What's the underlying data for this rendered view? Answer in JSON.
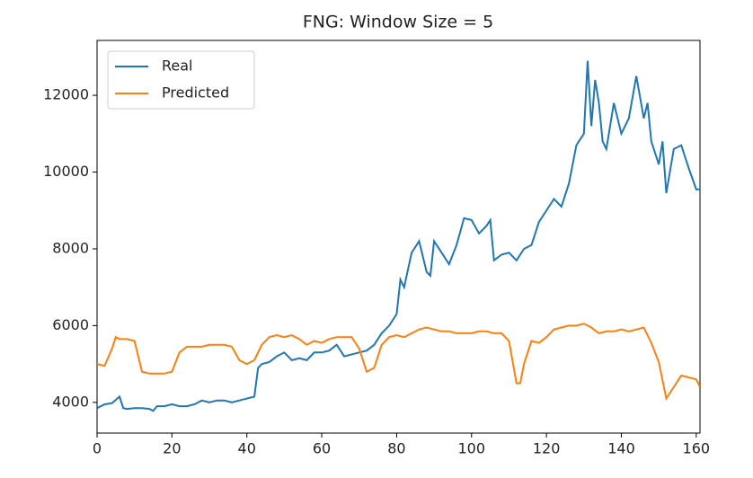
{
  "chart_data": {
    "type": "line",
    "title": "FNG: Window Size = 5",
    "xlim": [
      0,
      161
    ],
    "ylim": [
      3200,
      13430
    ],
    "xticks": [
      0,
      20,
      40,
      60,
      80,
      100,
      120,
      140,
      160
    ],
    "yticks": [
      4000,
      6000,
      8000,
      10000,
      12000
    ],
    "legend": "upper left",
    "series": [
      {
        "name": "Real",
        "color": "#1f77b4",
        "x": [
          0,
          2,
          4,
          6,
          7,
          8,
          10,
          12,
          14,
          15,
          16,
          18,
          20,
          22,
          24,
          26,
          28,
          30,
          32,
          34,
          36,
          38,
          40,
          42,
          43,
          44,
          46,
          48,
          50,
          52,
          54,
          56,
          58,
          60,
          62,
          64,
          66,
          68,
          70,
          72,
          74,
          76,
          78,
          80,
          81,
          82,
          84,
          86,
          88,
          89,
          90,
          92,
          94,
          96,
          98,
          100,
          102,
          104,
          105,
          106,
          108,
          110,
          112,
          114,
          116,
          118,
          120,
          122,
          124,
          126,
          128,
          130,
          131,
          132,
          133,
          134,
          135,
          136,
          138,
          140,
          142,
          144,
          146,
          147,
          148,
          150,
          151,
          152,
          154,
          156,
          158,
          160,
          161
        ],
        "values": [
          3850,
          3950,
          3980,
          4150,
          3850,
          3830,
          3850,
          3850,
          3830,
          3780,
          3900,
          3900,
          3950,
          3900,
          3900,
          3950,
          4050,
          4000,
          4050,
          4050,
          4000,
          4050,
          4100,
          4150,
          4900,
          5000,
          5050,
          5200,
          5300,
          5100,
          5150,
          5100,
          5300,
          5300,
          5350,
          5500,
          5200,
          5250,
          5300,
          5350,
          5500,
          5800,
          6000,
          6300,
          7200,
          7000,
          7900,
          8200,
          7400,
          7300,
          8200,
          7900,
          7600,
          8100,
          8800,
          8750,
          8400,
          8600,
          8750,
          7700,
          7850,
          7900,
          7700,
          8000,
          8100,
          8700,
          9000,
          9300,
          9100,
          9700,
          10700,
          11000,
          12900,
          11200,
          12400,
          11800,
          10800,
          10600,
          11800,
          11000,
          11400,
          12500,
          11400,
          11800,
          10800,
          10200,
          10800,
          9450,
          10600,
          10700,
          10100,
          9550,
          9550
        ]
      },
      {
        "name": "Predicted",
        "color": "#ff7f0e",
        "x": [
          0,
          2,
          4,
          5,
          6,
          8,
          10,
          12,
          14,
          16,
          18,
          20,
          22,
          24,
          26,
          28,
          30,
          32,
          34,
          36,
          38,
          40,
          42,
          44,
          46,
          48,
          50,
          52,
          54,
          56,
          58,
          60,
          62,
          64,
          66,
          68,
          70,
          72,
          74,
          76,
          78,
          80,
          82,
          84,
          86,
          88,
          90,
          92,
          94,
          96,
          98,
          100,
          102,
          104,
          106,
          108,
          110,
          112,
          113,
          114,
          116,
          118,
          120,
          122,
          124,
          126,
          128,
          130,
          132,
          134,
          136,
          138,
          140,
          142,
          144,
          146,
          148,
          150,
          152,
          154,
          156,
          158,
          160,
          161
        ],
        "values": [
          5000,
          4950,
          5400,
          5700,
          5650,
          5650,
          5600,
          4800,
          4750,
          4750,
          4750,
          4800,
          5300,
          5450,
          5450,
          5450,
          5500,
          5500,
          5500,
          5450,
          5100,
          5000,
          5100,
          5500,
          5700,
          5750,
          5700,
          5750,
          5650,
          5500,
          5600,
          5550,
          5650,
          5700,
          5700,
          5700,
          5400,
          4800,
          4900,
          5500,
          5700,
          5750,
          5700,
          5800,
          5900,
          5950,
          5900,
          5850,
          5850,
          5800,
          5800,
          5800,
          5850,
          5850,
          5800,
          5800,
          5600,
          4500,
          4500,
          5000,
          5600,
          5550,
          5700,
          5900,
          5950,
          6000,
          6000,
          6050,
          5950,
          5800,
          5850,
          5850,
          5900,
          5850,
          5900,
          5950,
          5550,
          5050,
          4100,
          4400,
          4700,
          4650,
          4600,
          4400
        ]
      }
    ]
  }
}
